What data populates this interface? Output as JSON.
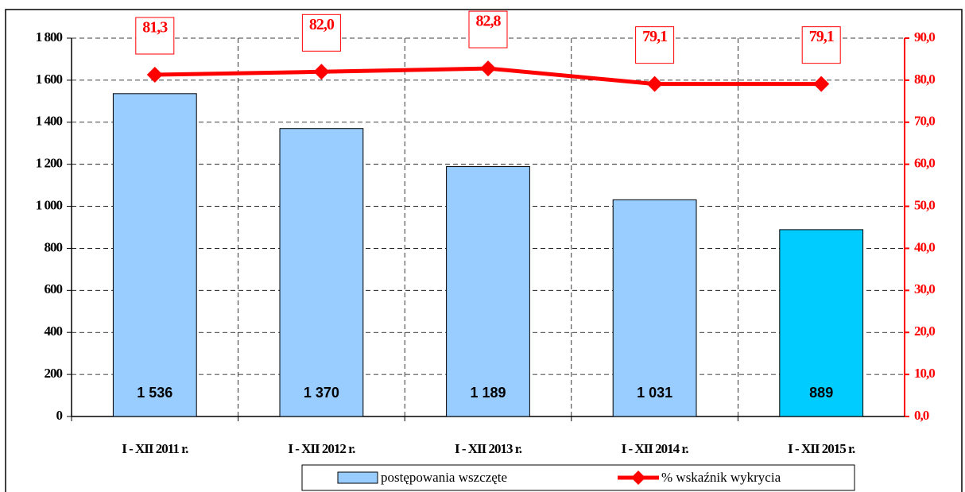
{
  "chart_data": {
    "type": "bar-line",
    "categories": [
      "I - XII 2011 r.",
      "I - XII 2012 r.",
      "I - XII 2013 r.",
      "I - XII 2014 r.",
      "I - XII 2015 r."
    ],
    "series": [
      {
        "name": "postępowania wszczęte",
        "type": "bar",
        "color": "#99ccff",
        "colors": [
          "#99ccff",
          "#99ccff",
          "#99ccff",
          "#99ccff",
          "#00ccff"
        ],
        "values": [
          1536,
          1370,
          1189,
          1031,
          889
        ],
        "value_labels": [
          "1 536",
          "1 370",
          "1 189",
          "1 031",
          "889"
        ]
      },
      {
        "name": "% wskaźnik wykrycia",
        "type": "line",
        "axis": "y2",
        "color": "#ff0000",
        "values": [
          81.3,
          82.0,
          82.8,
          79.1,
          79.1
        ],
        "value_labels": [
          "81,3",
          "82,0",
          "82,8",
          "79,1",
          "79,1"
        ]
      }
    ],
    "ylim": [
      0,
      1800
    ],
    "yticks": [
      0,
      200,
      400,
      600,
      800,
      {
        "value": 1000,
        "label": "1 000"
      },
      {
        "value": 1200,
        "label": "1 200"
      },
      {
        "value": 1400,
        "label": "1 400"
      },
      {
        "value": 1600,
        "label": "1 600"
      },
      {
        "value": 1800,
        "label": "1 800"
      }
    ],
    "y2lim": [
      0,
      90
    ],
    "y2ticks": [
      {
        "value": 0,
        "label": "0,0"
      },
      {
        "value": 10,
        "label": "10,0"
      },
      {
        "value": 20,
        "label": "20,0"
      },
      {
        "value": 30,
        "label": "30,0"
      },
      {
        "value": 40,
        "label": "40,0"
      },
      {
        "value": 50,
        "label": "50,0"
      },
      {
        "value": 60,
        "label": "60,0"
      },
      {
        "value": 70,
        "label": "70,0"
      },
      {
        "value": 80,
        "label": "80,0"
      },
      {
        "value": 90,
        "label": "90,0"
      }
    ],
    "grid": true
  }
}
